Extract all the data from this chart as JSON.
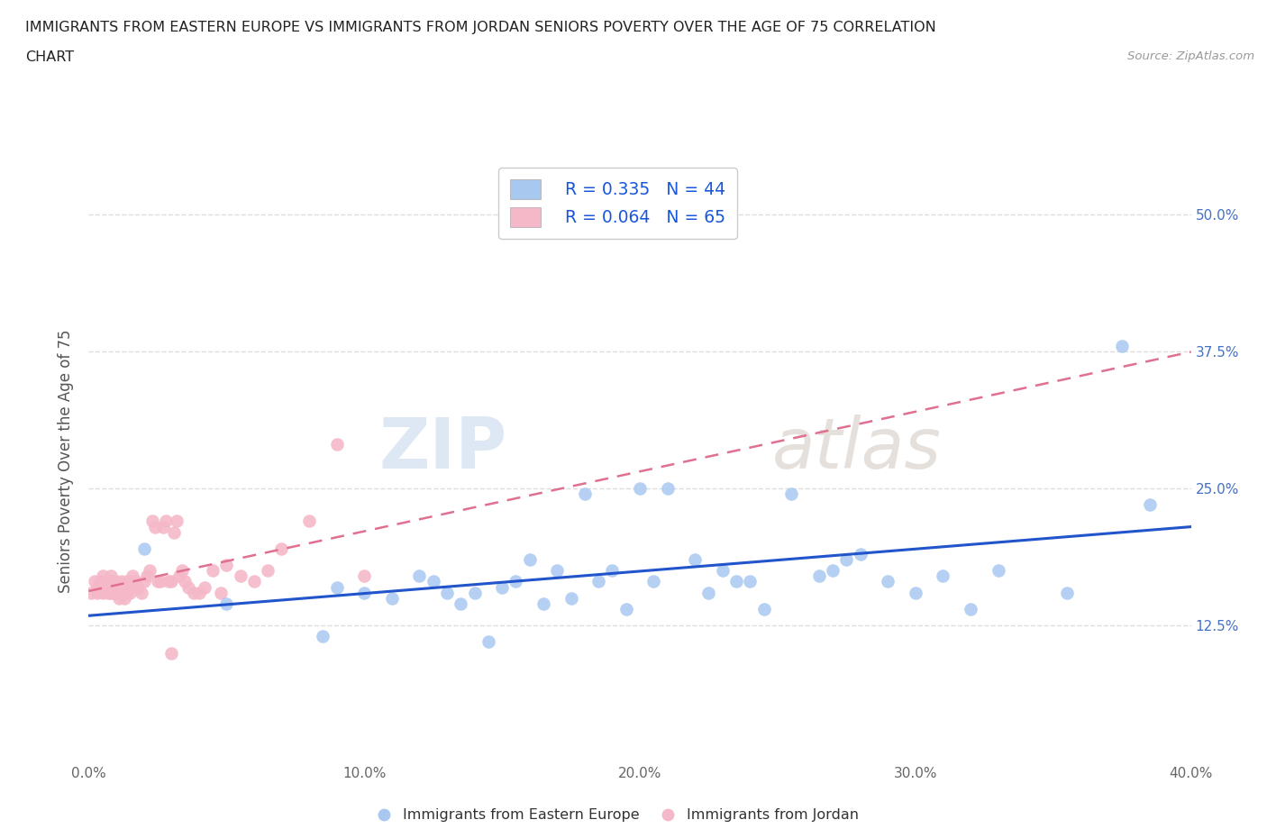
{
  "title_line1": "IMMIGRANTS FROM EASTERN EUROPE VS IMMIGRANTS FROM JORDAN SENIORS POVERTY OVER THE AGE OF 75 CORRELATION",
  "title_line2": "CHART",
  "source_text": "Source: ZipAtlas.com",
  "ylabel": "Seniors Poverty Over the Age of 75",
  "watermark_zip": "ZIP",
  "watermark_atlas": "atlas",
  "legend_r1": "R = 0.335",
  "legend_n1": "N = 44",
  "legend_r2": "R = 0.064",
  "legend_n2": "N = 65",
  "color_blue": "#a8c8f0",
  "color_pink": "#f5b8c8",
  "line_blue": "#2255cc",
  "line_pink": "#e07090",
  "xlim": [
    0.0,
    0.4
  ],
  "ylim": [
    0.0,
    0.55
  ],
  "xticks": [
    0.0,
    0.1,
    0.2,
    0.3,
    0.4
  ],
  "xtick_labels": [
    "0.0%",
    "10.0%",
    "20.0%",
    "30.0%",
    "40.0%"
  ],
  "ytick_vals": [
    0.125,
    0.25,
    0.375,
    0.5
  ],
  "ytick_labels": [
    "12.5%",
    "25.0%",
    "37.5%",
    "50.0%"
  ],
  "blue_R": 0.335,
  "blue_N": 44,
  "pink_R": 0.064,
  "pink_N": 65,
  "blue_scatter_x": [
    0.02,
    0.05,
    0.085,
    0.09,
    0.1,
    0.11,
    0.12,
    0.125,
    0.13,
    0.135,
    0.14,
    0.145,
    0.15,
    0.155,
    0.16,
    0.165,
    0.17,
    0.175,
    0.18,
    0.185,
    0.19,
    0.195,
    0.2,
    0.205,
    0.21,
    0.22,
    0.225,
    0.23,
    0.235,
    0.24,
    0.245,
    0.255,
    0.265,
    0.27,
    0.275,
    0.28,
    0.29,
    0.3,
    0.31,
    0.32,
    0.33,
    0.355,
    0.375,
    0.385
  ],
  "blue_scatter_y": [
    0.195,
    0.145,
    0.115,
    0.16,
    0.155,
    0.15,
    0.17,
    0.165,
    0.155,
    0.145,
    0.155,
    0.11,
    0.16,
    0.165,
    0.185,
    0.145,
    0.175,
    0.15,
    0.245,
    0.165,
    0.175,
    0.14,
    0.25,
    0.165,
    0.25,
    0.185,
    0.155,
    0.175,
    0.165,
    0.165,
    0.14,
    0.245,
    0.17,
    0.175,
    0.185,
    0.19,
    0.165,
    0.155,
    0.17,
    0.14,
    0.175,
    0.155,
    0.38,
    0.235
  ],
  "pink_scatter_x": [
    0.001,
    0.002,
    0.003,
    0.003,
    0.004,
    0.004,
    0.005,
    0.005,
    0.005,
    0.006,
    0.006,
    0.007,
    0.007,
    0.008,
    0.008,
    0.008,
    0.009,
    0.009,
    0.01,
    0.01,
    0.011,
    0.011,
    0.012,
    0.012,
    0.013,
    0.013,
    0.014,
    0.014,
    0.015,
    0.015,
    0.016,
    0.017,
    0.018,
    0.019,
    0.02,
    0.021,
    0.022,
    0.023,
    0.024,
    0.025,
    0.026,
    0.027,
    0.028,
    0.029,
    0.03,
    0.031,
    0.032,
    0.033,
    0.034,
    0.035,
    0.036,
    0.038,
    0.04,
    0.042,
    0.045,
    0.048,
    0.05,
    0.055,
    0.06,
    0.065,
    0.07,
    0.08,
    0.09,
    0.1,
    0.03
  ],
  "pink_scatter_y": [
    0.155,
    0.165,
    0.155,
    0.16,
    0.16,
    0.165,
    0.155,
    0.16,
    0.17,
    0.16,
    0.165,
    0.155,
    0.16,
    0.155,
    0.165,
    0.17,
    0.155,
    0.165,
    0.155,
    0.165,
    0.15,
    0.155,
    0.155,
    0.165,
    0.15,
    0.155,
    0.155,
    0.165,
    0.155,
    0.165,
    0.17,
    0.165,
    0.16,
    0.155,
    0.165,
    0.17,
    0.175,
    0.22,
    0.215,
    0.165,
    0.165,
    0.215,
    0.22,
    0.165,
    0.165,
    0.21,
    0.22,
    0.17,
    0.175,
    0.165,
    0.16,
    0.155,
    0.155,
    0.16,
    0.175,
    0.155,
    0.18,
    0.17,
    0.165,
    0.175,
    0.195,
    0.22,
    0.29,
    0.17,
    0.1
  ],
  "background_color": "#ffffff",
  "grid_color": "#dddddd"
}
